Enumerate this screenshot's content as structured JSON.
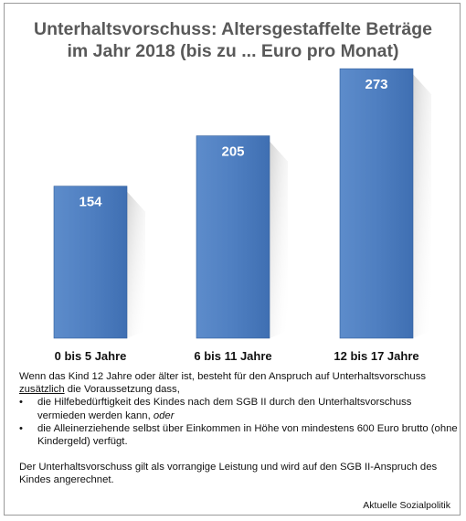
{
  "chart_data": {
    "type": "bar",
    "title_line1": "Unterhaltsvorschuss: Altersgestaffelte Beträge",
    "title_line2": "im Jahr 2018 (bis zu ... Euro pro Monat)",
    "categories": [
      "0 bis 5 Jahre",
      "6 bis 11 Jahre",
      "12 bis 17 Jahre"
    ],
    "values": [
      154,
      205,
      273
    ],
    "ylim": [
      0,
      300
    ],
    "grid": false,
    "bar_color": "#4f7fc1",
    "bar_edge_color": "#2f5d9c",
    "label_color": "#ffffff",
    "title_color": "#595959"
  },
  "notes": {
    "intro_part1": "Wenn das Kind 12 Jahre oder älter ist, besteht für den Anspruch auf Unterhaltsvorschuss",
    "intro_underlined": "zusätzlich",
    "intro_part2": " die Voraussetzung dass,",
    "bullet1_part1": "die Hilfebedürftigkeit des Kindes nach dem SGB II durch den Unterhaltsvorschuss vermieden werden kann, ",
    "bullet1_italic": "oder",
    "bullet2": "die Alleinerziehende selbst über Einkommen in Höhe von mindestens 600 Euro brutto (ohne Kindergeld) verfügt.",
    "footer": "Der Unterhaltsvorschuss gilt als vorrangige Leistung und wird auf den SGB II-Anspruch des Kindes angerechnet."
  },
  "source": "Aktuelle Sozialpolitik"
}
